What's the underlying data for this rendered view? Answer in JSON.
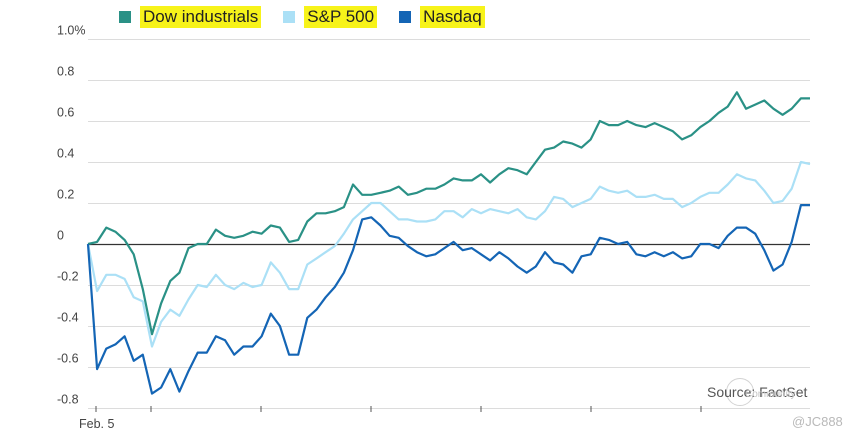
{
  "chart_data": {
    "type": "line",
    "ylim": [
      -0.8,
      1.0
    ],
    "y_ticks": [
      {
        "value": 1.0,
        "label": "1.0%"
      },
      {
        "value": 0.8,
        "label": "0.8"
      },
      {
        "value": 0.6,
        "label": "0.6"
      },
      {
        "value": 0.4,
        "label": "0.4"
      },
      {
        "value": 0.2,
        "label": "0.2"
      },
      {
        "value": 0.0,
        "label": "0"
      },
      {
        "value": -0.2,
        "label": "-0.2"
      },
      {
        "value": -0.4,
        "label": "-0.4"
      },
      {
        "value": -0.6,
        "label": "-0.6"
      },
      {
        "value": -0.8,
        "label": "-0.8"
      }
    ],
    "x_label_text": "Feb. 5",
    "grid": "horizontal",
    "legend_position": "top",
    "series": [
      {
        "name": "Dow industrials",
        "color": "#2a9186",
        "values": [
          0.0,
          0.01,
          0.08,
          0.06,
          0.02,
          -0.05,
          -0.22,
          -0.44,
          -0.29,
          -0.18,
          -0.14,
          -0.02,
          0.0,
          0.0,
          0.07,
          0.04,
          0.03,
          0.04,
          0.06,
          0.05,
          0.09,
          0.08,
          0.01,
          0.02,
          0.11,
          0.15,
          0.15,
          0.16,
          0.18,
          0.29,
          0.24,
          0.24,
          0.25,
          0.26,
          0.28,
          0.24,
          0.25,
          0.27,
          0.27,
          0.29,
          0.32,
          0.31,
          0.31,
          0.34,
          0.3,
          0.34,
          0.37,
          0.36,
          0.34,
          0.4,
          0.46,
          0.47,
          0.5,
          0.49,
          0.47,
          0.51,
          0.6,
          0.58,
          0.58,
          0.6,
          0.58,
          0.57,
          0.59,
          0.57,
          0.55,
          0.51,
          0.53,
          0.57,
          0.6,
          0.64,
          0.67,
          0.74,
          0.66,
          0.68,
          0.7,
          0.66,
          0.63,
          0.66,
          0.71,
          0.71
        ]
      },
      {
        "name": "S&P 500",
        "color": "#abe0f6",
        "values": [
          0.0,
          -0.23,
          -0.15,
          -0.15,
          -0.17,
          -0.26,
          -0.28,
          -0.5,
          -0.38,
          -0.32,
          -0.35,
          -0.27,
          -0.2,
          -0.21,
          -0.15,
          -0.2,
          -0.22,
          -0.19,
          -0.21,
          -0.2,
          -0.09,
          -0.14,
          -0.22,
          -0.22,
          -0.1,
          -0.07,
          -0.04,
          -0.01,
          0.05,
          0.12,
          0.16,
          0.2,
          0.2,
          0.16,
          0.12,
          0.12,
          0.11,
          0.11,
          0.12,
          0.16,
          0.16,
          0.13,
          0.17,
          0.15,
          0.17,
          0.16,
          0.15,
          0.17,
          0.13,
          0.12,
          0.16,
          0.23,
          0.22,
          0.18,
          0.2,
          0.22,
          0.28,
          0.26,
          0.25,
          0.26,
          0.23,
          0.23,
          0.24,
          0.22,
          0.22,
          0.18,
          0.2,
          0.23,
          0.25,
          0.25,
          0.29,
          0.34,
          0.32,
          0.31,
          0.26,
          0.2,
          0.21,
          0.27,
          0.4,
          0.39
        ]
      },
      {
        "name": "Nasdaq",
        "color": "#1465b5",
        "values": [
          0.0,
          -0.61,
          -0.51,
          -0.49,
          -0.45,
          -0.57,
          -0.54,
          -0.73,
          -0.7,
          -0.61,
          -0.72,
          -0.62,
          -0.53,
          -0.53,
          -0.45,
          -0.47,
          -0.54,
          -0.5,
          -0.5,
          -0.45,
          -0.34,
          -0.4,
          -0.54,
          -0.54,
          -0.36,
          -0.32,
          -0.26,
          -0.21,
          -0.14,
          -0.03,
          0.12,
          0.13,
          0.09,
          0.04,
          0.03,
          -0.01,
          -0.04,
          -0.06,
          -0.05,
          -0.02,
          0.01,
          -0.03,
          -0.02,
          -0.05,
          -0.08,
          -0.04,
          -0.07,
          -0.11,
          -0.14,
          -0.11,
          -0.04,
          -0.09,
          -0.1,
          -0.14,
          -0.06,
          -0.05,
          0.03,
          0.02,
          0.0,
          0.01,
          -0.05,
          -0.06,
          -0.04,
          -0.06,
          -0.04,
          -0.07,
          -0.06,
          0.0,
          0.0,
          -0.02,
          0.04,
          0.08,
          0.08,
          0.05,
          -0.03,
          -0.13,
          -0.1,
          0.01,
          0.19,
          0.19
        ]
      }
    ]
  },
  "source_text": "Source: FactSet",
  "watermark": {
    "community_text": "Community",
    "handle_text": "@JC888"
  }
}
